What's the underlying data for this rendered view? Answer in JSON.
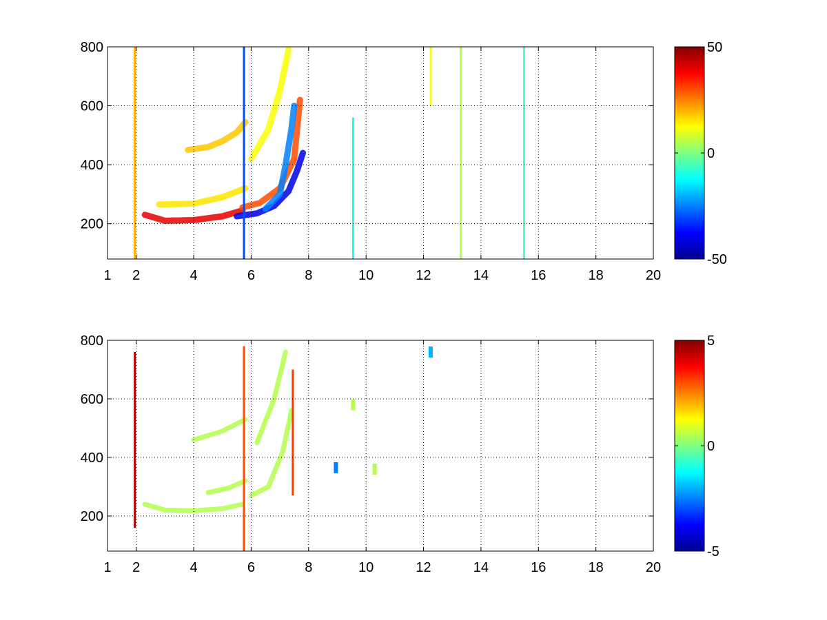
{
  "chart_data": [
    {
      "type": "heatmap",
      "x_ticks": [
        "1",
        "2",
        "4",
        "6",
        "8",
        "10",
        "12",
        "14",
        "16",
        "18",
        "20"
      ],
      "x_tick_values": [
        1,
        2,
        4,
        6,
        8,
        10,
        12,
        14,
        16,
        18,
        20
      ],
      "y_ticks": [
        "200",
        "400",
        "600",
        "800"
      ],
      "y_tick_values": [
        200,
        400,
        600,
        800
      ],
      "xlim": [
        1,
        20
      ],
      "ylim": [
        80,
        800
      ],
      "grid": true,
      "colormap": "jet",
      "colorbar": {
        "min": -50,
        "max": 50,
        "labels": [
          "50",
          "0",
          "-50"
        ],
        "label_values": [
          50,
          0,
          -50
        ]
      },
      "features": [
        {
          "kind": "curve",
          "value": 40,
          "points": [
            [
              2.3,
              230
            ],
            [
              3,
              210
            ],
            [
              4,
              212
            ],
            [
              5,
              225
            ],
            [
              5.7,
              245
            ]
          ]
        },
        {
          "kind": "curve",
          "value": 15,
          "points": [
            [
              2.8,
              265
            ],
            [
              4,
              268
            ],
            [
              5,
              290
            ],
            [
              5.8,
              320
            ]
          ]
        },
        {
          "kind": "curve",
          "value": 30,
          "points": [
            [
              5.7,
              255
            ],
            [
              6.3,
              270
            ],
            [
              7,
              320
            ],
            [
              7.5,
              420
            ],
            [
              7.6,
              520
            ],
            [
              7.7,
              620
            ]
          ]
        },
        {
          "kind": "curve",
          "value": -40,
          "points": [
            [
              5.5,
              225
            ],
            [
              6.2,
              235
            ],
            [
              6.8,
              260
            ],
            [
              7.3,
              310
            ],
            [
              7.6,
              380
            ],
            [
              7.8,
              440
            ]
          ]
        },
        {
          "kind": "curve",
          "value": -25,
          "points": [
            [
              6.5,
              250
            ],
            [
              7,
              300
            ],
            [
              7.2,
              400
            ],
            [
              7.4,
              520
            ],
            [
              7.5,
              600
            ]
          ]
        },
        {
          "kind": "curve",
          "value": 18,
          "points": [
            [
              3.8,
              450
            ],
            [
              4.5,
              460
            ],
            [
              5,
              480
            ],
            [
              5.5,
              510
            ],
            [
              5.8,
              545
            ]
          ]
        },
        {
          "kind": "curve",
          "value": 12,
          "points": [
            [
              6,
              420
            ],
            [
              6.6,
              520
            ],
            [
              7,
              650
            ],
            [
              7.3,
              790
            ]
          ]
        },
        {
          "kind": "vline",
          "x": 5.75,
          "y0": 80,
          "y1": 800,
          "value": -30
        },
        {
          "kind": "vline",
          "x": 1.95,
          "y0": 80,
          "y1": 800,
          "value": 20
        },
        {
          "kind": "vline",
          "x": 9.55,
          "y0": 80,
          "y1": 560,
          "value": -10
        },
        {
          "kind": "vline",
          "x": 12.25,
          "y0": 600,
          "y1": 800,
          "value": 12
        },
        {
          "kind": "vline",
          "x": 13.3,
          "y0": 80,
          "y1": 800,
          "value": 5
        },
        {
          "kind": "vline",
          "x": 15.5,
          "y0": 80,
          "y1": 800,
          "value": -5
        }
      ]
    },
    {
      "type": "heatmap",
      "x_ticks": [
        "1",
        "2",
        "4",
        "6",
        "8",
        "10",
        "12",
        "14",
        "16",
        "18",
        "20"
      ],
      "x_tick_values": [
        1,
        2,
        4,
        6,
        8,
        10,
        12,
        14,
        16,
        18,
        20
      ],
      "y_ticks": [
        "200",
        "400",
        "600",
        "800"
      ],
      "y_tick_values": [
        200,
        400,
        600,
        800
      ],
      "xlim": [
        1,
        20
      ],
      "ylim": [
        80,
        800
      ],
      "grid": true,
      "colormap": "jet",
      "colorbar": {
        "min": -5,
        "max": 5,
        "labels": [
          "5",
          "0",
          "-5"
        ],
        "label_values": [
          5,
          0,
          -5
        ]
      },
      "features": [
        {
          "kind": "curve",
          "value": 0.5,
          "points": [
            [
              2.3,
              240
            ],
            [
              3,
              220
            ],
            [
              4,
              218
            ],
            [
              5,
              225
            ],
            [
              5.7,
              240
            ]
          ]
        },
        {
          "kind": "curve",
          "value": 0.5,
          "points": [
            [
              4.5,
              280
            ],
            [
              5.2,
              295
            ],
            [
              5.8,
              320
            ]
          ]
        },
        {
          "kind": "curve",
          "value": 0.5,
          "points": [
            [
              6,
              270
            ],
            [
              6.6,
              300
            ],
            [
              7.1,
              420
            ],
            [
              7.4,
              560
            ]
          ]
        },
        {
          "kind": "curve",
          "value": 0.5,
          "points": [
            [
              4,
              460
            ],
            [
              5,
              490
            ],
            [
              5.8,
              530
            ]
          ]
        },
        {
          "kind": "curve",
          "value": 0.5,
          "points": [
            [
              6.2,
              450
            ],
            [
              6.8,
              600
            ],
            [
              7.2,
              760
            ]
          ]
        },
        {
          "kind": "vline",
          "x": 5.75,
          "y0": 80,
          "y1": 780,
          "value": 3
        },
        {
          "kind": "vline",
          "x": 7.45,
          "y0": 270,
          "y1": 700,
          "value": 3.2
        },
        {
          "kind": "vline",
          "x": 1.95,
          "y0": 160,
          "y1": 760,
          "value": 4.5
        },
        {
          "kind": "patch",
          "x": 9.55,
          "y": 580,
          "value": 0.5
        },
        {
          "kind": "patch",
          "x": 8.95,
          "y": 365,
          "value": -2.5
        },
        {
          "kind": "patch",
          "x": 10.3,
          "y": 360,
          "value": 0.5
        },
        {
          "kind": "patch",
          "x": 12.25,
          "y": 760,
          "value": -2
        }
      ]
    }
  ]
}
